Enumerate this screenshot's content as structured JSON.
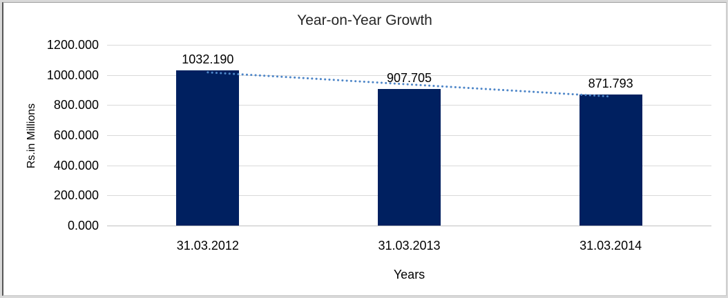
{
  "chart_data": {
    "type": "bar",
    "title": "Year-on-Year Growth",
    "xlabel": "Years",
    "ylabel": "Rs.in Millions",
    "categories": [
      "31.03.2012",
      "31.03.2013",
      "31.03.2014"
    ],
    "values": [
      1032.19,
      907.705,
      871.793
    ],
    "value_labels": [
      "1032.190",
      "907.705",
      "871.793"
    ],
    "ylim": [
      0,
      1200
    ],
    "ytick_step": 200,
    "ytick_labels": [
      "0.000",
      "200.000",
      "400.000",
      "600.000",
      "800.000",
      "1000.000",
      "1200.000"
    ],
    "grid": true,
    "legend": false,
    "trendline": {
      "type": "linear",
      "style": "round-dotted"
    },
    "colors": {
      "bar": "#002060",
      "trendline": "#4e86c8",
      "gridline": "#d9d9d9",
      "axis_line": "#c0c0c0",
      "text": "#000000",
      "title": "#262626"
    }
  }
}
